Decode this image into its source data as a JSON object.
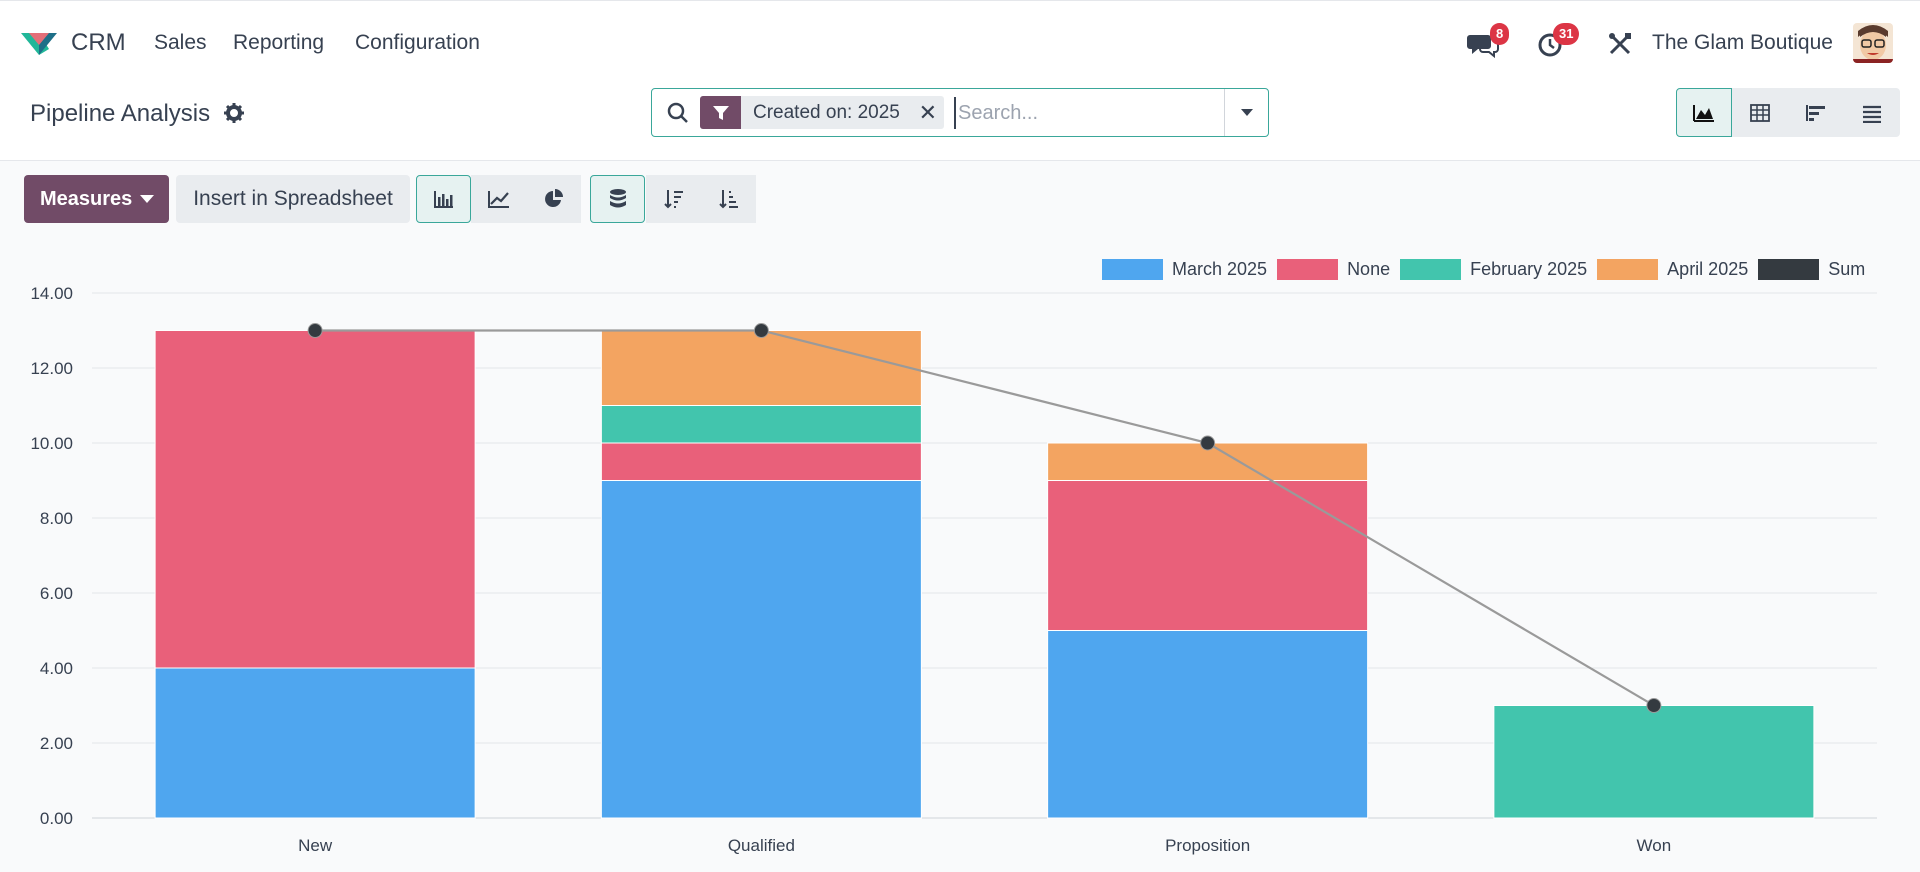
{
  "nav": {
    "app_name": "CRM",
    "menu": [
      "Sales",
      "Reporting",
      "Configuration"
    ],
    "messages_count": "8",
    "activities_count": "31",
    "company": "The Glam Boutique"
  },
  "control": {
    "title": "Pipeline Analysis",
    "facet": "Created on: 2025",
    "search_placeholder": "Search..."
  },
  "toolbar": {
    "measures_label": "Measures",
    "insert_label": "Insert in Spreadsheet"
  },
  "colors": {
    "March 2025": "#4fa6ef",
    "None": "#e9607a",
    "February 2025": "#42c5ad",
    "April 2025": "#f3a461",
    "Sum": "#343a40"
  },
  "chart_data": {
    "type": "bar",
    "stacked": true,
    "categories": [
      "New",
      "Qualified",
      "Proposition",
      "Won"
    ],
    "ylim": [
      0,
      14
    ],
    "yticks": [
      "0.00",
      "2.00",
      "4.00",
      "6.00",
      "8.00",
      "10.00",
      "12.00",
      "14.00"
    ],
    "legend_position": "top-right",
    "grid": true,
    "series": [
      {
        "name": "March 2025",
        "values": [
          4,
          9,
          5,
          0
        ]
      },
      {
        "name": "None",
        "values": [
          9,
          1,
          4,
          0
        ]
      },
      {
        "name": "February 2025",
        "values": [
          0,
          1,
          0,
          3
        ]
      },
      {
        "name": "April 2025",
        "values": [
          0,
          2,
          1,
          0
        ]
      }
    ],
    "line_series": {
      "name": "Sum",
      "values": [
        13,
        13,
        10,
        3
      ]
    }
  }
}
